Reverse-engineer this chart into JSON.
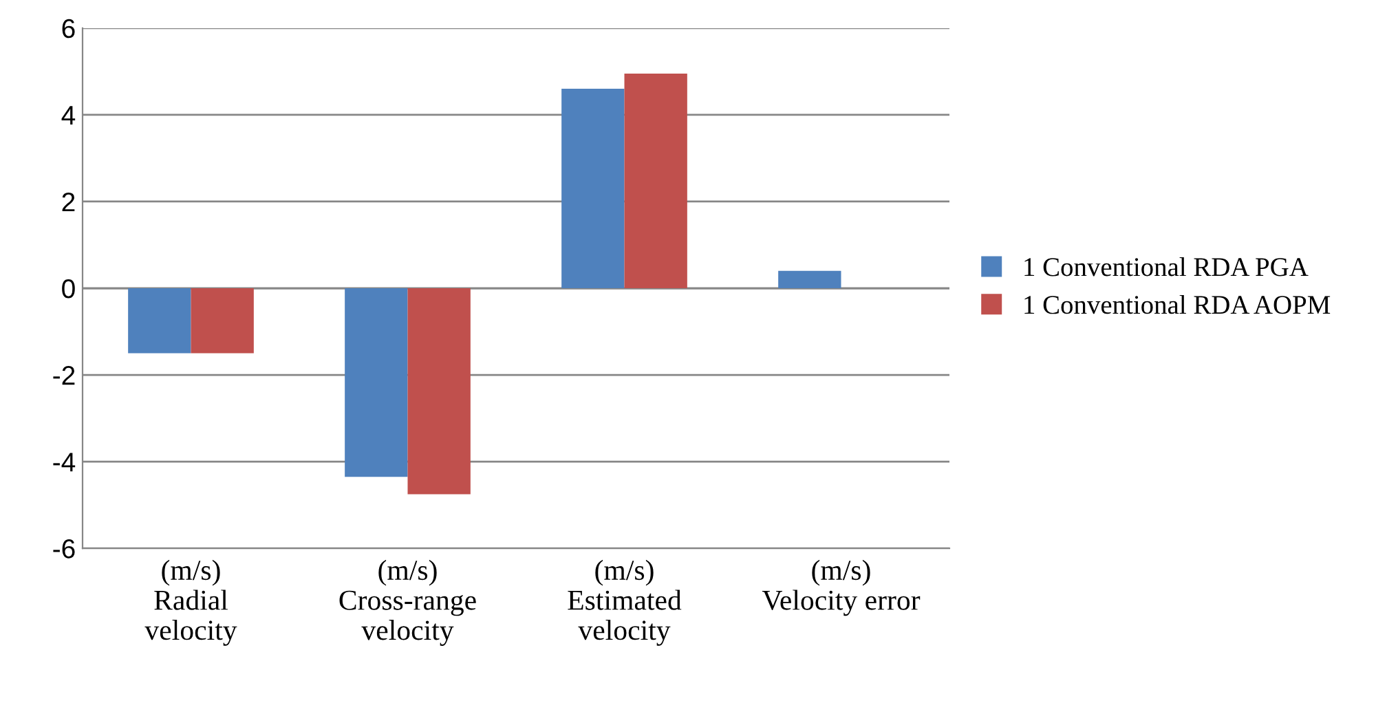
{
  "chart_data": {
    "type": "bar",
    "categories": [
      "(m/s)\nRadial\nvelocity",
      "(m/s)\nCross-range\nvelocity",
      "(m/s)\nEstimated\nvelocity",
      "(m/s)\nVelocity error"
    ],
    "series": [
      {
        "name": "1 Conventional RDA PGA",
        "color": "#4f81bd",
        "values": [
          -1.5,
          -4.35,
          4.6,
          0.4
        ]
      },
      {
        "name": "1 Conventional RDA AOPM",
        "color": "#c0504d",
        "values": [
          -1.5,
          -4.75,
          4.95,
          0
        ]
      }
    ],
    "ylim": [
      -6,
      6
    ],
    "yticks": [
      -6,
      -4,
      -2,
      0,
      2,
      4,
      6
    ],
    "grid": "y",
    "legend": "right"
  }
}
